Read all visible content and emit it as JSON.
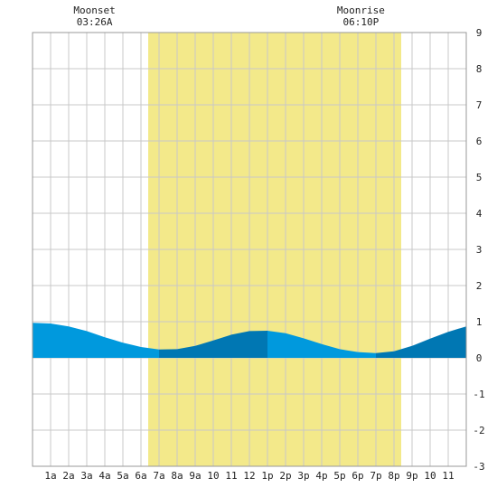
{
  "chart_data": {
    "type": "area",
    "title": "",
    "xlabel": "",
    "ylabel": "",
    "x_ticks": [
      "1a",
      "2a",
      "3a",
      "4a",
      "5a",
      "6a",
      "7a",
      "8a",
      "9a",
      "10",
      "11",
      "12",
      "1p",
      "2p",
      "3p",
      "4p",
      "5p",
      "6p",
      "7p",
      "8p",
      "9p",
      "10",
      "11"
    ],
    "y_ticks": [
      "9",
      "8",
      "7",
      "6",
      "5",
      "4",
      "3",
      "2",
      "1",
      "0",
      "-1",
      "-2",
      "-3"
    ],
    "xlim": [
      0,
      24
    ],
    "ylim": [
      -3,
      9
    ],
    "grid": true,
    "daylight": {
      "start_hour": 6.4,
      "end_hour": 20.4
    },
    "moon_events": [
      {
        "label": "Moonset",
        "time": "03:26A",
        "hour": 3.43
      },
      {
        "label": "Moonrise",
        "time": "06:10P",
        "hour": 18.17
      }
    ],
    "series": [
      {
        "x": [
          0,
          1,
          2,
          3,
          4,
          5,
          6,
          7,
          8,
          9,
          10,
          11,
          12,
          13,
          14,
          15,
          16,
          17,
          18,
          19,
          20,
          21,
          22,
          23,
          24
        ],
        "values": [
          0.97,
          0.95,
          0.87,
          0.74,
          0.57,
          0.42,
          0.3,
          0.23,
          0.24,
          0.33,
          0.48,
          0.64,
          0.74,
          0.75,
          0.68,
          0.54,
          0.38,
          0.24,
          0.16,
          0.13,
          0.18,
          0.33,
          0.53,
          0.72,
          0.87
        ]
      }
    ],
    "colors": {
      "grid": "#c8c8c8",
      "daylight": "#f3e98a",
      "water_light": "#0099dd",
      "water_dark": "#0077b3"
    }
  }
}
